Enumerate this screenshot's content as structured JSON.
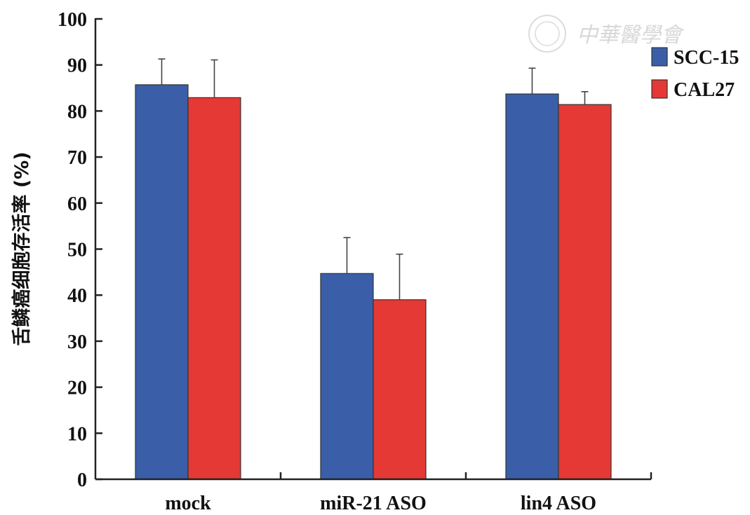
{
  "chart_data": {
    "type": "bar",
    "title": "",
    "xlabel": "",
    "ylabel": "舌鳞癌细胞存活率 (%)",
    "ylim": [
      0,
      100
    ],
    "yticks": [
      0,
      10,
      20,
      30,
      40,
      50,
      60,
      70,
      80,
      90,
      100
    ],
    "categories": [
      "mock",
      "miR-21 ASO",
      "lin4 ASO"
    ],
    "series": [
      {
        "name": "SCC-15",
        "color": "#3a5ea8",
        "values": [
          85.7,
          44.7,
          83.7
        ],
        "errors": [
          5.6,
          7.8,
          5.6
        ]
      },
      {
        "name": "CAL27",
        "color": "#e53935",
        "values": [
          82.9,
          39.0,
          81.4
        ],
        "errors": [
          8.2,
          9.9,
          2.8
        ]
      }
    ],
    "legend_position": "top-right",
    "grid": false
  },
  "watermark": {
    "text": "中華醫學會",
    "icon": "seal-logo"
  }
}
